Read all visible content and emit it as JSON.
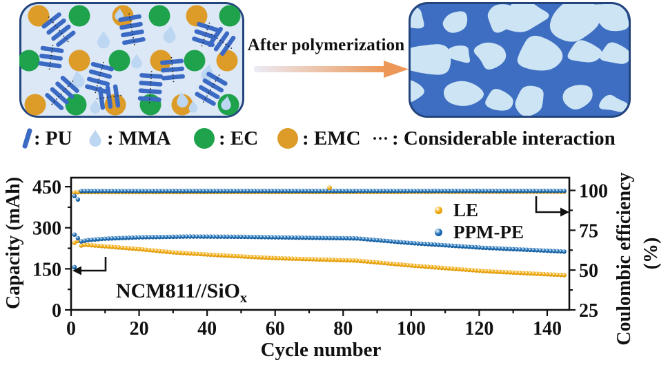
{
  "colors": {
    "pu": "#3B6AC4",
    "mma": "#BDD7F2",
    "ec": "#1FA24C",
    "emc": "#DD9B28",
    "panel_bg": "#DCE8F6",
    "panel_border": "#23457E",
    "polymer_bg": "#3E6EC1",
    "polymer_blob": "#CDE4F4",
    "arrow_start": "#ECECF6",
    "arrow_end": "#EC9757",
    "le": "#F4AC10",
    "le_dark": "#C98A06",
    "ppm": "#1D70B8",
    "ppm_dark": "#0F4E87",
    "axis": "#111111"
  },
  "diagram": {
    "after_label": "After polymerization",
    "legend": [
      {
        "icon": "pu-bar-icon",
        "label": ": PU"
      },
      {
        "icon": "mma-droplet-icon",
        "label": ": MMA"
      },
      {
        "icon": "ec-circle-icon",
        "label": ": EC"
      },
      {
        "icon": "emc-circle-icon",
        "label": ": EMC"
      },
      {
        "icon": "interaction-dots-icon",
        "label": ": Considerable interaction"
      }
    ]
  },
  "chart_data": {
    "type": "scatter",
    "xlabel": "Cycle number",
    "ylabel_left": "Capacity (mAh)",
    "ylabel_right_line1": "Coulombic efficiency",
    "ylabel_right_line2": "(%)",
    "annotation": {
      "text": "NCM811//SiO",
      "subscript": "x"
    },
    "xlim": [
      0,
      146.5
    ],
    "xticks": [
      0,
      20,
      40,
      60,
      80,
      100,
      120,
      140
    ],
    "xminorticks": [
      10,
      30,
      50,
      70,
      90,
      110,
      130
    ],
    "ylim_left": [
      0,
      483
    ],
    "yticks_left": [
      0,
      150,
      300,
      450
    ],
    "yminorticks_left": [
      75,
      225,
      375
    ],
    "ylim_right": [
      25,
      108
    ],
    "yticks_right": [
      25,
      50,
      75,
      100
    ],
    "yminorticks_right": [
      37.5,
      62.5,
      87.5
    ],
    "grid": false,
    "legend_position": "upper-right-inside",
    "legend": [
      {
        "name": "LE",
        "color_key": "le"
      },
      {
        "name": "PPM-PE",
        "color_key": "ppm"
      }
    ],
    "series": [
      {
        "name": "LE capacity",
        "axis": "left",
        "color_key": "le",
        "marker_every_cycle": true,
        "cycle_range": [
          1,
          145
        ],
        "control_cycles": [
          1,
          2,
          3,
          4,
          10,
          20,
          30,
          43,
          60,
          84,
          100,
          121,
          135,
          145
        ],
        "control_values": [
          245,
          252,
          235,
          238,
          232,
          222,
          210,
          200,
          189,
          180,
          162,
          142,
          133,
          127
        ]
      },
      {
        "name": "PPM-PE capacity",
        "axis": "left",
        "color_key": "ppm",
        "marker_every_cycle": true,
        "cycle_range": [
          1,
          145
        ],
        "control_cycles": [
          1,
          2,
          3,
          5,
          10,
          20,
          35,
          50,
          60,
          84,
          100,
          121,
          135,
          145
        ],
        "control_values": [
          275,
          262,
          250,
          255,
          260,
          265,
          268,
          267,
          265,
          261,
          244,
          227,
          219,
          213
        ]
      },
      {
        "name": "LE coulombic efficiency",
        "axis": "right",
        "color_key": "le",
        "marker_every_cycle": true,
        "cycle_range": [
          1,
          145
        ],
        "control_cycles": [
          1,
          3,
          76,
          145
        ],
        "control_values": [
          98.7,
          98.9,
          99.0,
          99.2
        ]
      },
      {
        "name": "PPM-PE coulombic efficiency",
        "axis": "right",
        "color_key": "ppm",
        "marker_every_cycle": true,
        "cycle_range": [
          1,
          145
        ],
        "control_cycles": [
          1,
          2,
          3,
          145
        ],
        "control_values": [
          96.5,
          94.3,
          99.6,
          99.7
        ]
      }
    ],
    "outlier_points": [
      {
        "series": "PPM-PE capacity",
        "axis": "left",
        "color_key": "ppm",
        "x": 1,
        "y": 156
      },
      {
        "series": "LE coulombic efficiency",
        "axis": "right",
        "color_key": "le",
        "x": 76,
        "y": 101.6
      }
    ]
  }
}
